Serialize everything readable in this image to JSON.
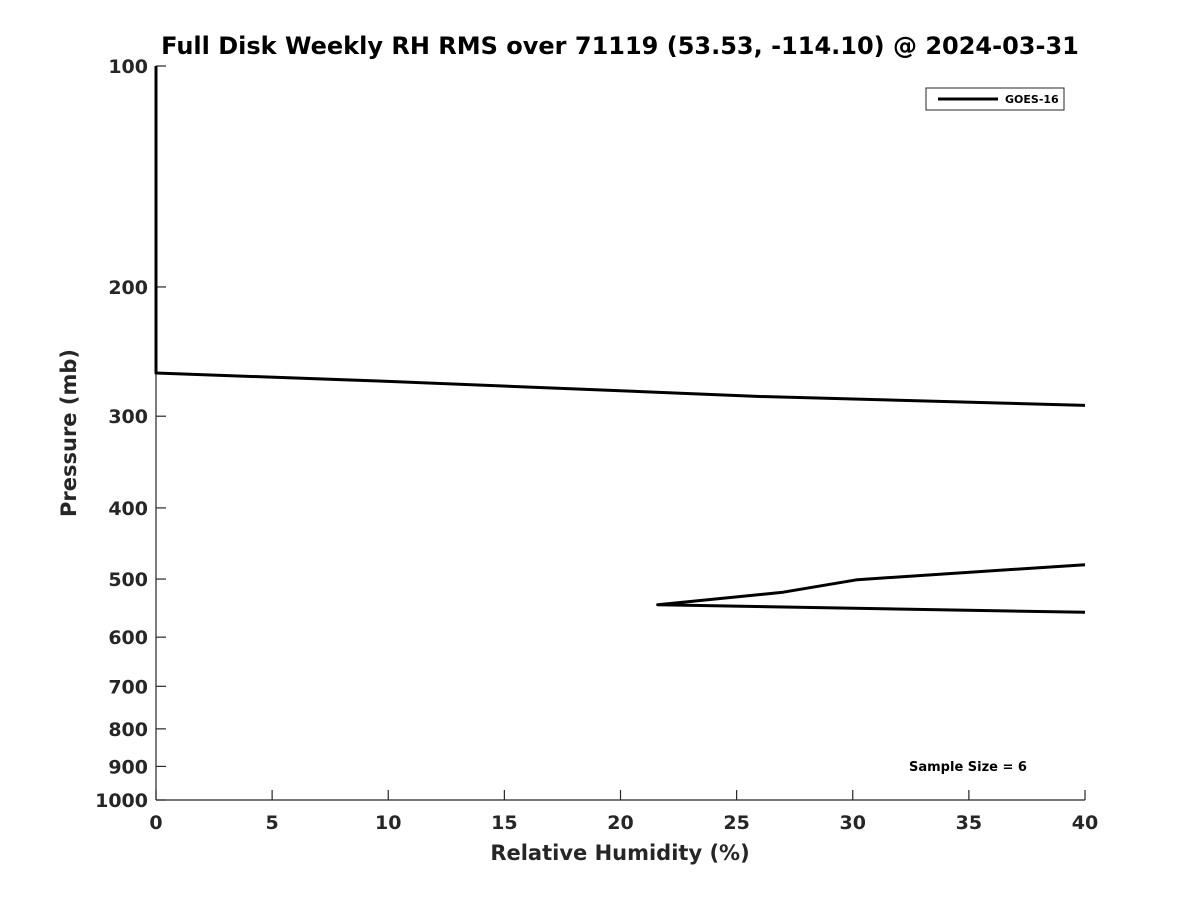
{
  "chart_data": {
    "type": "line",
    "title": "Full Disk Weekly RH RMS over 71119 (53.53, -114.10) @ 2024-03-31",
    "xlabel": "Relative Humidity (%)",
    "ylabel": "Pressure (mb)",
    "xlim": [
      0,
      40
    ],
    "ylim": [
      100,
      1000
    ],
    "yscale": "log",
    "y_reversed": true,
    "grid": false,
    "xticks": [
      0,
      5,
      10,
      15,
      20,
      25,
      30,
      35,
      40
    ],
    "yticks": [
      100,
      200,
      300,
      400,
      500,
      600,
      700,
      800,
      900,
      1000
    ],
    "legend_position": "top-right",
    "series": [
      {
        "name": "GOES-16",
        "color": "#000000",
        "points": [
          {
            "x": 0,
            "y": 100
          },
          {
            "x": 0,
            "y": 150
          },
          {
            "x": 0,
            "y": 200
          },
          {
            "x": 0,
            "y": 250
          },
          {
            "x": 0,
            "y": 262
          },
          {
            "x": 10,
            "y": 269
          },
          {
            "x": 20,
            "y": 277
          },
          {
            "x": 26,
            "y": 282
          },
          {
            "x": 40,
            "y": 290
          },
          {
            "x": null,
            "y": null
          },
          {
            "x": 40,
            "y": 478
          },
          {
            "x": 30.2,
            "y": 501
          },
          {
            "x": 27,
            "y": 521
          },
          {
            "x": 21.6,
            "y": 542
          },
          {
            "x": 40,
            "y": 555
          }
        ]
      }
    ],
    "annotations": [
      "Sample Size = 6"
    ]
  }
}
